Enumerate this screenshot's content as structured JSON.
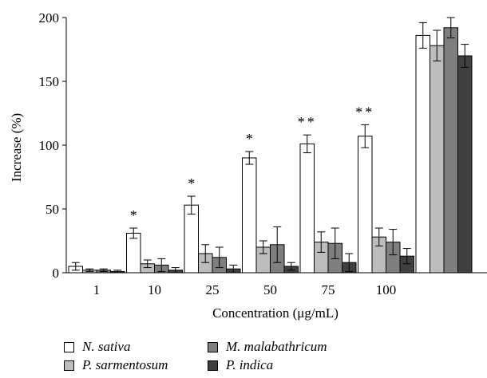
{
  "chart_data": {
    "type": "bar",
    "xlabel": "Concentration (μg/mL)",
    "ylabel": "Increase (%)",
    "ylim": [
      0,
      200
    ],
    "yticks": [
      "0",
      "50",
      "100",
      "150",
      "200"
    ],
    "categories": [
      "1",
      "10",
      "25",
      "50",
      "75",
      "100",
      ""
    ],
    "series": [
      {
        "name": "N. sativa",
        "color": "#ffffff",
        "values": [
          5,
          31,
          53,
          90,
          101,
          107,
          186
        ],
        "errors": [
          3,
          4,
          7,
          5,
          7,
          9,
          10
        ]
      },
      {
        "name": "P. sarmentosum",
        "color": "#bdbdbd",
        "values": [
          2,
          7,
          15,
          20,
          24,
          28,
          178
        ],
        "errors": [
          1,
          3,
          7,
          5,
          8,
          7,
          12
        ]
      },
      {
        "name": "M. malabathricum",
        "color": "#7f7f7f",
        "values": [
          2,
          6,
          12,
          22,
          23,
          24,
          192
        ],
        "errors": [
          1,
          5,
          8,
          14,
          12,
          10,
          8
        ]
      },
      {
        "name": "P. indica",
        "color": "#404040",
        "values": [
          1,
          2,
          3,
          5,
          8,
          13,
          170
        ],
        "errors": [
          1,
          2,
          3,
          3,
          7,
          6,
          9
        ]
      }
    ],
    "annotations": [
      "",
      "*",
      "*",
      "*",
      "**",
      "**",
      ""
    ],
    "grid": false,
    "legend_position": "bottom"
  }
}
